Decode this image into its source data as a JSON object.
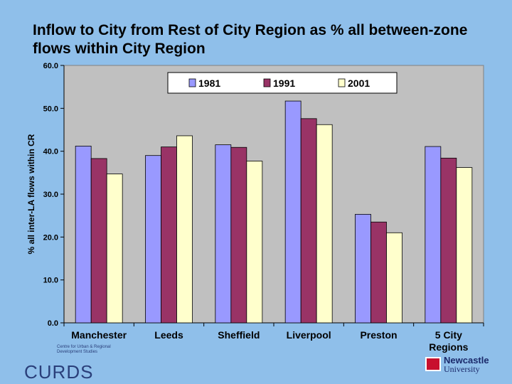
{
  "title": "Inflow to City from Rest of City Region as % all between-zone flows within City Region",
  "chart_data": {
    "type": "bar",
    "title": "Inflow to City from Rest of City Region as % all between-zone flows within City Region",
    "xlabel": "",
    "ylabel": "% all inter-LA flows within CR",
    "ylim": [
      0,
      60
    ],
    "yticks": [
      "0.0",
      "10.0",
      "20.0",
      "30.0",
      "40.0",
      "50.0",
      "60.0"
    ],
    "categories": [
      "Manchester",
      "Leeds",
      "Sheffield",
      "Liverpool",
      "Preston",
      "5 City Regions"
    ],
    "series": [
      {
        "name": "1981",
        "color": "#9999FF",
        "values": [
          41.2,
          39.0,
          41.5,
          51.7,
          25.3,
          41.1
        ]
      },
      {
        "name": "1991",
        "color": "#993366",
        "values": [
          38.3,
          41.0,
          40.9,
          47.6,
          23.5,
          38.4
        ]
      },
      {
        "name": "2001",
        "color": "#FFFFCC",
        "values": [
          34.7,
          43.6,
          37.7,
          46.2,
          21.0,
          36.2
        ]
      }
    ],
    "grid": false,
    "legend": "top"
  },
  "footer": {
    "curds_small": "Centre for Urban & Regional Development Studies",
    "curds_logo": "CURDS",
    "nu_name": "Newcastle",
    "nu_sub": "University"
  }
}
